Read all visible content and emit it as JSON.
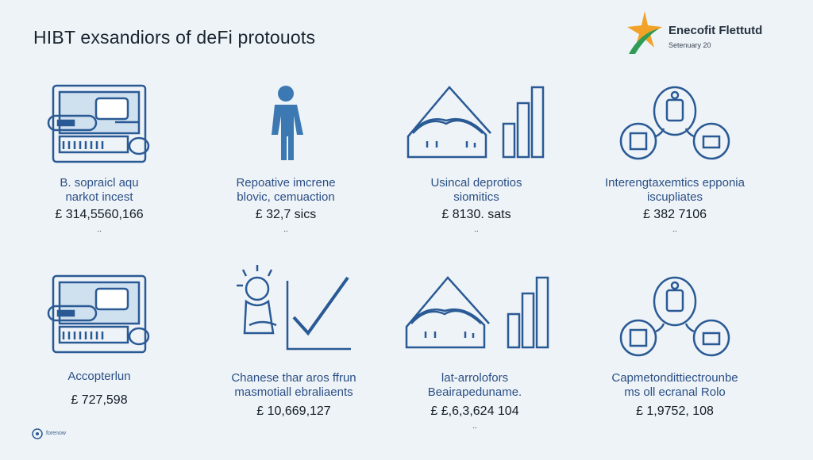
{
  "title": "HIBT exsandiors of deFi protouots",
  "brand": {
    "name": "Enecofit Flettutd",
    "sub": "Setenuary 20",
    "colors": {
      "orange": "#f2a227",
      "green": "#2e9b57"
    }
  },
  "cards": [
    {
      "label": [
        "B. sopraicl aqu",
        "narkot incest"
      ],
      "value": "£ 314,5560,166",
      "dot": "..",
      "icon": "laptop-dashboard-icon"
    },
    {
      "label": [
        "Repoative imcrene",
        "blovic, cemuaction"
      ],
      "value": "£ 32,7 sics",
      "dot": "..",
      "icon": "person-icon"
    },
    {
      "label": [
        "Usincal deprotios",
        "siomitics"
      ],
      "value": "£ 8130. sats",
      "dot": "..",
      "icon": "houses-barchart-icon"
    },
    {
      "label": [
        "Interengtaxemtics epponia",
        "iscupliates"
      ],
      "value": "£ 382 7106",
      "dot": "..",
      "icon": "network-circles-icon"
    },
    {
      "label": [
        "Accopterlun"
      ],
      "value": "£ 727,598",
      "dot": "",
      "icon": "laptop-dashboard-icon"
    },
    {
      "label": [
        "Chanese thar aros ffrun",
        "masmotiall ebraliaents"
      ],
      "value": "£ 10,669,127",
      "dot": "",
      "icon": "person-checkmark-icon"
    },
    {
      "label": [
        "lat-arrolofors",
        "Beairapeduname."
      ],
      "value": "£ £,6,3,624 104",
      "dot": "..",
      "icon": "houses-barchart-icon"
    },
    {
      "label": [
        "Capmetondittiectrounbe",
        "ms oll ecranal Rolo"
      ],
      "value": "£ 1,9752, 108",
      "dot": "",
      "icon": "network-circles-icon"
    }
  ],
  "footer": {
    "text": "forenow"
  },
  "colors": {
    "accent": "#2a5a95",
    "background": "#eef3f7"
  }
}
